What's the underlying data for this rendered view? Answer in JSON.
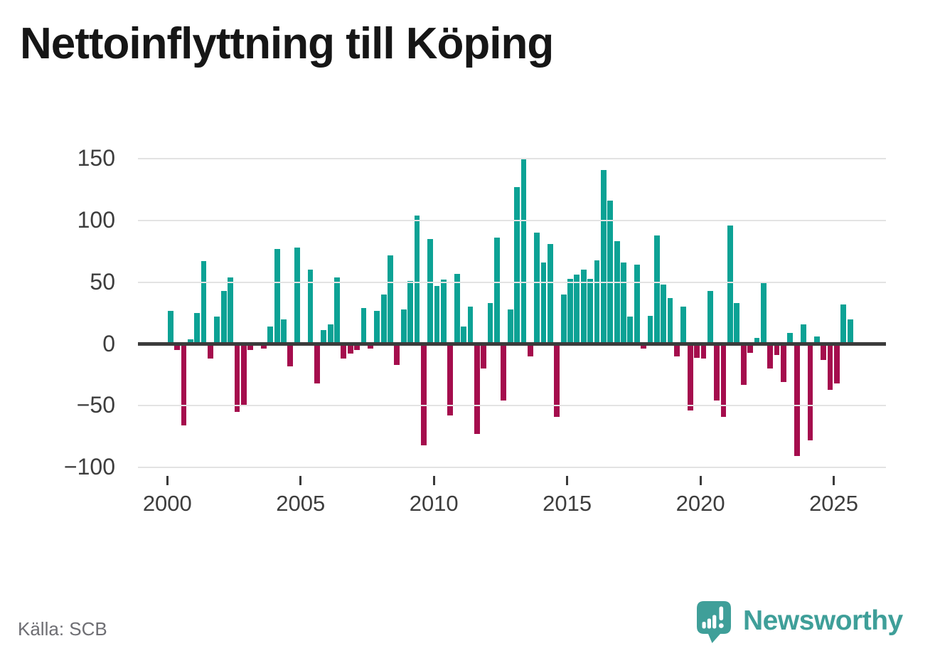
{
  "title": "Nettoinflyttning till Köping",
  "source_text": "Källa: SCB",
  "branding": {
    "wordmark": "Newsworthy"
  },
  "colors": {
    "positive_bar": "#0ca295",
    "negative_bar": "#a50d4d",
    "zero_axis": "#3b3b3b",
    "gridline": "#e3e3e3",
    "tick_label": "#3d3d3d",
    "source_text": "#6e6e73",
    "brand_teal": "#3f9f99",
    "title_text": "#161616"
  },
  "chart_data": {
    "type": "bar",
    "title": "Nettoinflyttning till Köping",
    "xlabel": "",
    "ylabel": "",
    "ylim": [
      -100,
      150
    ],
    "grid": true,
    "y_ticks": [
      150,
      100,
      50,
      0,
      -50,
      -100
    ],
    "x_ticks": [
      2000,
      2005,
      2010,
      2015,
      2020,
      2025
    ],
    "x": [
      "2000Q1",
      "2000Q2",
      "2000Q3",
      "2000Q4",
      "2001Q1",
      "2001Q2",
      "2001Q3",
      "2001Q4",
      "2002Q1",
      "2002Q2",
      "2002Q3",
      "2002Q4",
      "2003Q1",
      "2003Q2",
      "2003Q3",
      "2003Q4",
      "2004Q1",
      "2004Q2",
      "2004Q3",
      "2004Q4",
      "2005Q1",
      "2005Q2",
      "2005Q3",
      "2005Q4",
      "2006Q1",
      "2006Q2",
      "2006Q3",
      "2006Q4",
      "2007Q1",
      "2007Q2",
      "2007Q3",
      "2007Q4",
      "2008Q1",
      "2008Q2",
      "2008Q3",
      "2008Q4",
      "2009Q1",
      "2009Q2",
      "2009Q3",
      "2009Q4",
      "2010Q1",
      "2010Q2",
      "2010Q3",
      "2010Q4",
      "2011Q1",
      "2011Q2",
      "2011Q3",
      "2011Q4",
      "2012Q1",
      "2012Q2",
      "2012Q3",
      "2012Q4",
      "2013Q1",
      "2013Q2",
      "2013Q3",
      "2013Q4",
      "2014Q1",
      "2014Q2",
      "2014Q3",
      "2014Q4",
      "2015Q1",
      "2015Q2",
      "2015Q3",
      "2015Q4",
      "2016Q1",
      "2016Q2",
      "2016Q3",
      "2016Q4",
      "2017Q1",
      "2017Q2",
      "2017Q3",
      "2017Q4",
      "2018Q1",
      "2018Q2",
      "2018Q3",
      "2018Q4",
      "2019Q1",
      "2019Q2",
      "2019Q3",
      "2019Q4",
      "2020Q1",
      "2020Q2",
      "2020Q3",
      "2020Q4",
      "2021Q1",
      "2021Q2",
      "2021Q3",
      "2021Q4",
      "2022Q1",
      "2022Q2",
      "2022Q3",
      "2022Q4",
      "2023Q1",
      "2023Q2",
      "2023Q3",
      "2023Q4",
      "2024Q1",
      "2024Q2",
      "2024Q3",
      "2024Q4",
      "2025Q1",
      "2025Q2",
      "2025Q3"
    ],
    "values": [
      27,
      -5,
      -66,
      4,
      25,
      67,
      -12,
      22,
      43,
      54,
      -55,
      -50,
      -5,
      0,
      -4,
      14,
      77,
      20,
      -18,
      78,
      0,
      60,
      -32,
      11,
      16,
      54,
      -12,
      -8,
      -5,
      29,
      -4,
      27,
      40,
      72,
      -17,
      28,
      51,
      104,
      -82,
      85,
      47,
      52,
      -58,
      57,
      14,
      30,
      -73,
      -20,
      33,
      86,
      -46,
      28,
      127,
      151,
      -10,
      90,
      66,
      81,
      -59,
      40,
      53,
      56,
      60,
      53,
      68,
      141,
      116,
      83,
      66,
      22,
      64,
      -4,
      23,
      88,
      48,
      37,
      -10,
      30,
      -54,
      -11,
      -12,
      43,
      -46,
      -59,
      96,
      33,
      -33,
      -7,
      5,
      50,
      -20,
      -9,
      -31,
      9,
      -91,
      16,
      -78,
      6,
      -13,
      -37,
      -32,
      32,
      20
    ],
    "positive_color": "#0ca295",
    "negative_color": "#a50d4d",
    "legend": null
  }
}
